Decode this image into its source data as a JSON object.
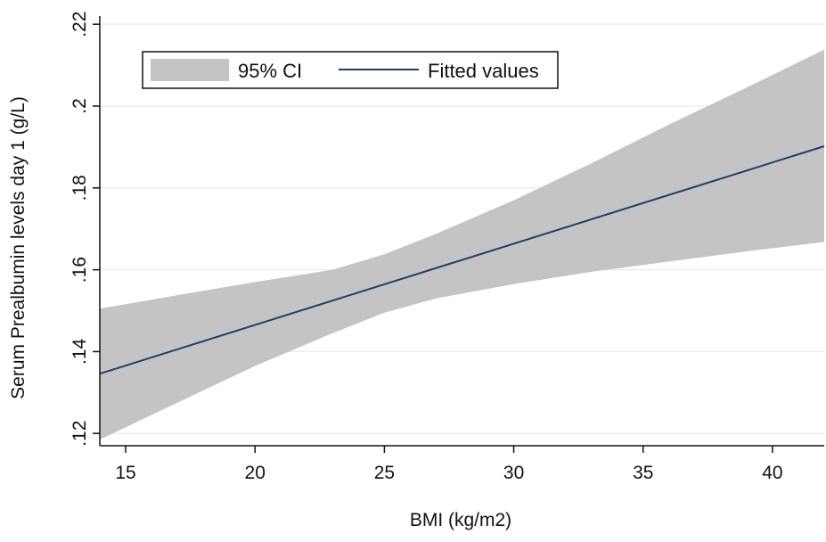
{
  "chart_data": {
    "type": "line",
    "title": "",
    "xlabel": "BMI (kg/m2)",
    "ylabel": "Serum Prealbumin levels day 1 (g/L)",
    "xlim": [
      14,
      42
    ],
    "ylim": [
      0.117,
      0.222
    ],
    "x_ticks": [
      15,
      20,
      25,
      30,
      35,
      40
    ],
    "x_tick_labels": [
      "15",
      "20",
      "25",
      "30",
      "35",
      "40"
    ],
    "y_ticks": [
      0.12,
      0.14,
      0.16,
      0.18,
      0.2,
      0.22
    ],
    "y_tick_labels": [
      ".12",
      ".14",
      ".16",
      ".18",
      ".2",
      ".22"
    ],
    "grid": true,
    "legend": {
      "position": "top-left",
      "entries": [
        {
          "label": "95% CI",
          "color": "#c4c4c4",
          "kind": "band"
        },
        {
          "label": "Fitted values",
          "color": "#1f3f66",
          "kind": "line"
        }
      ]
    },
    "series": [
      {
        "name": "Fitted values",
        "type": "line",
        "color": "#1f3f66",
        "x": [
          14,
          42
        ],
        "y": [
          0.1346,
          0.1902
        ]
      },
      {
        "name": "95% CI",
        "type": "area",
        "color": "#c4c4c4",
        "x": [
          14,
          17,
          20,
          23,
          25,
          27,
          30,
          33,
          36,
          39,
          42
        ],
        "lower": [
          0.1185,
          0.1275,
          0.1365,
          0.1445,
          0.1495,
          0.153,
          0.1565,
          0.1595,
          0.162,
          0.1645,
          0.1668
        ],
        "upper": [
          0.1505,
          0.1538,
          0.157,
          0.16,
          0.1638,
          0.1688,
          0.177,
          0.186,
          0.1955,
          0.2045,
          0.2138
        ]
      }
    ]
  }
}
